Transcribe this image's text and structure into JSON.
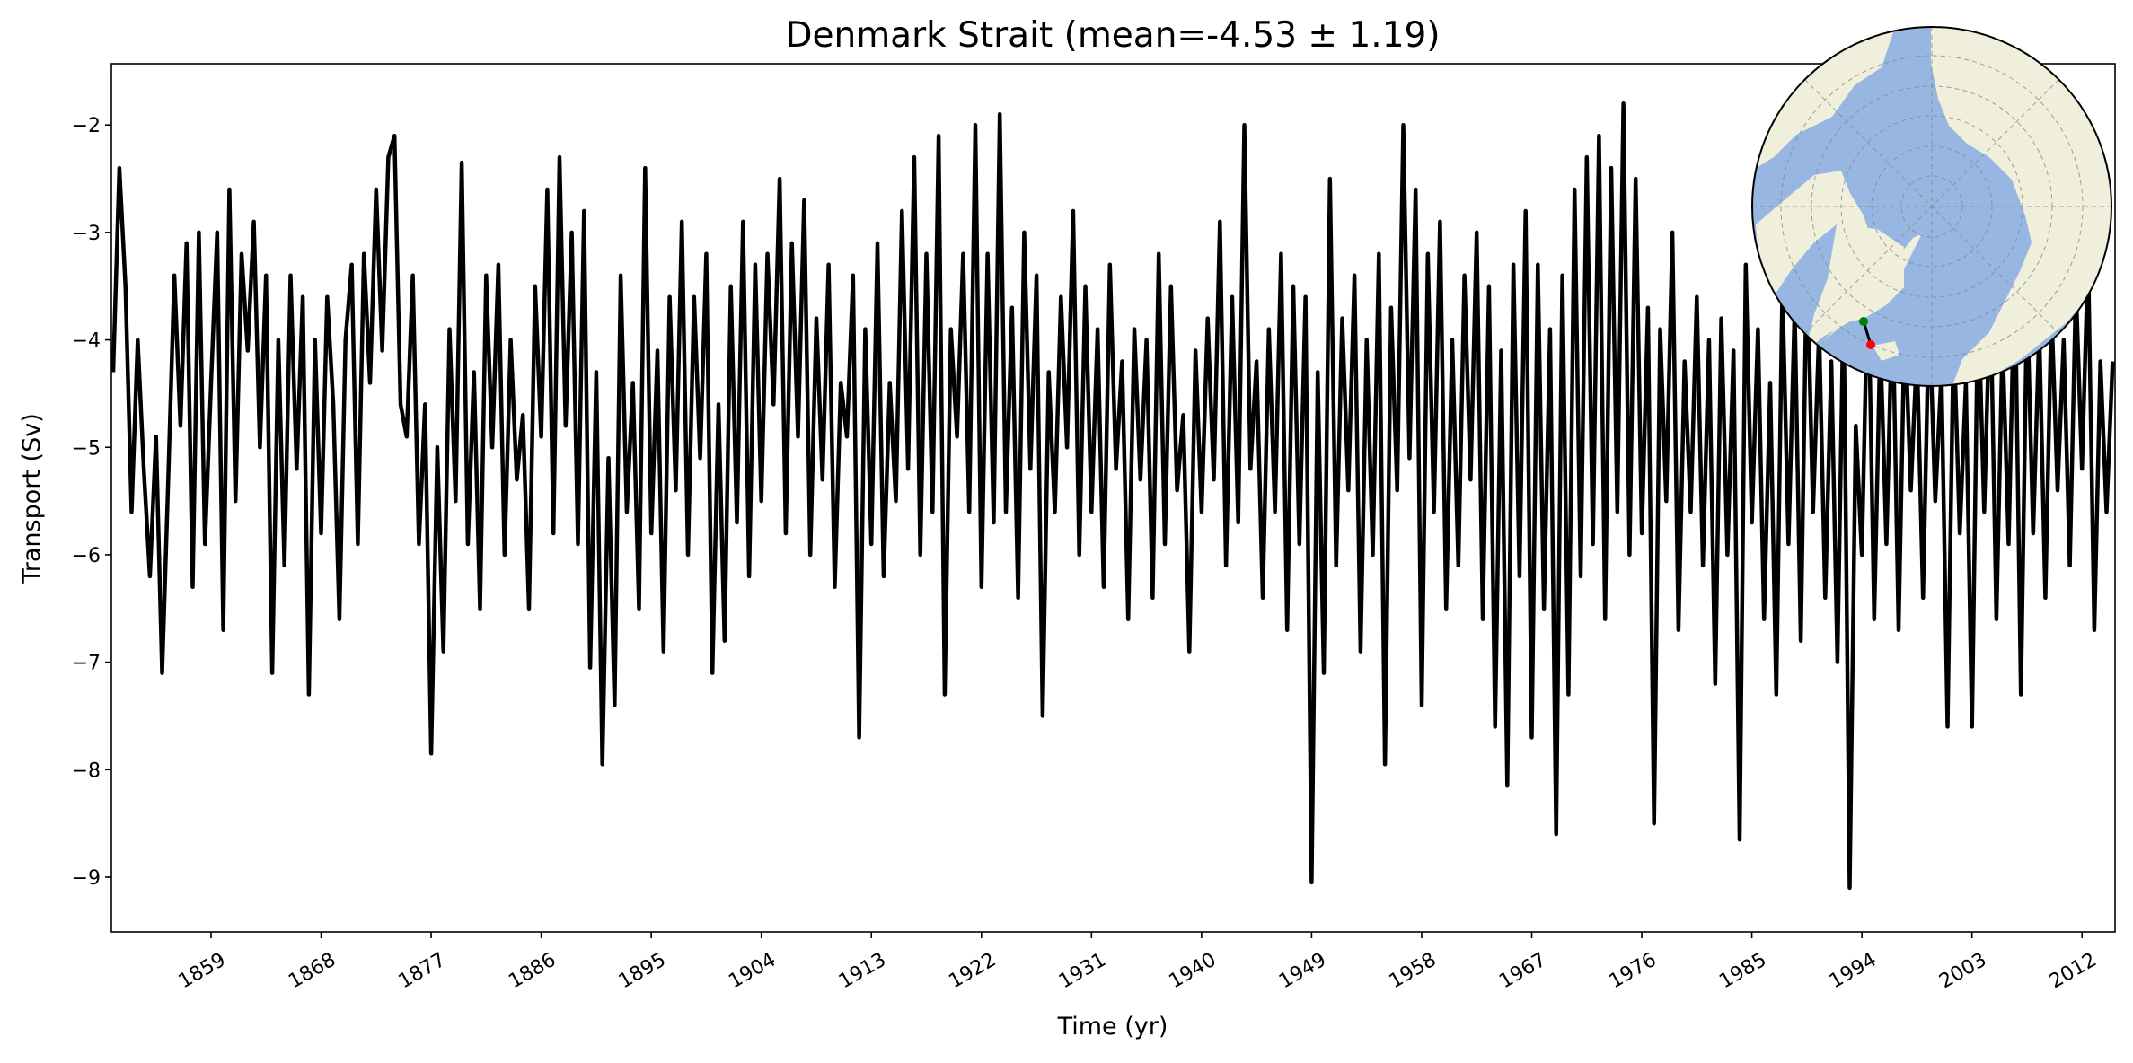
{
  "chart_data": {
    "type": "line",
    "title": "Denmark Strait (mean=-4.53 ± 1.19)",
    "xlabel": "Time (yr)",
    "ylabel": "Transport (Sv)",
    "xlim": [
      1850.85,
      2014.7
    ],
    "ylim": [
      -9.51,
      -1.43
    ],
    "xticks": [
      "1859",
      "1868",
      "1877",
      "1886",
      "1895",
      "1904",
      "1913",
      "1922",
      "1931",
      "1940",
      "1949",
      "1958",
      "1967",
      "1976",
      "1985",
      "1994",
      "2003",
      "2012"
    ],
    "yticks": [
      "−2",
      "−3",
      "−4",
      "−5",
      "−6",
      "−7",
      "−8",
      "−9"
    ],
    "grid": false,
    "line_color": "#000000",
    "series": [
      {
        "time_start": 1851,
        "time_step_yr": 0.5,
        "values": [
          -4.3,
          -2.4,
          -3.5,
          -5.6,
          -4.0,
          -5.2,
          -6.2,
          -4.9,
          -7.1,
          -5.3,
          -3.4,
          -4.8,
          -3.1,
          -6.3,
          -3.0,
          -5.9,
          -4.4,
          -3.0,
          -6.7,
          -2.6,
          -5.5,
          -3.2,
          -4.1,
          -2.9,
          -5.0,
          -3.4,
          -7.1,
          -4.0,
          -6.1,
          -3.4,
          -5.2,
          -3.6,
          -7.3,
          -4.0,
          -5.8,
          -3.6,
          -4.6,
          -6.6,
          -4.0,
          -3.3,
          -5.9,
          -3.2,
          -4.4,
          -2.6,
          -4.1,
          -2.3,
          -2.1,
          -4.6,
          -4.9,
          -3.4,
          -5.9,
          -4.6,
          -7.85,
          -5.0,
          -6.9,
          -3.9,
          -5.5,
          -2.35,
          -5.9,
          -4.3,
          -6.5,
          -3.4,
          -5.0,
          -3.3,
          -6.0,
          -4.0,
          -5.3,
          -4.7,
          -6.5,
          -3.5,
          -4.9,
          -2.6,
          -5.8,
          -2.3,
          -4.8,
          -3.0,
          -5.9,
          -2.8,
          -7.05,
          -4.3,
          -7.95,
          -5.1,
          -7.4,
          -3.4,
          -5.6,
          -4.4,
          -6.5,
          -2.4,
          -5.8,
          -4.1,
          -6.9,
          -3.6,
          -5.4,
          -2.9,
          -6.0,
          -3.6,
          -5.1,
          -3.2,
          -7.1,
          -4.6,
          -6.8,
          -3.5,
          -5.7,
          -2.9,
          -6.2,
          -3.3,
          -5.5,
          -3.2,
          -4.6,
          -2.5,
          -5.8,
          -3.1,
          -4.9,
          -2.7,
          -6.0,
          -3.8,
          -5.3,
          -3.3,
          -6.3,
          -4.4,
          -4.9,
          -3.4,
          -7.7,
          -3.9,
          -5.9,
          -3.1,
          -6.2,
          -4.4,
          -5.5,
          -2.8,
          -5.2,
          -2.3,
          -6.0,
          -3.2,
          -5.6,
          -2.1,
          -7.3,
          -3.9,
          -4.9,
          -3.2,
          -5.6,
          -2.0,
          -6.3,
          -3.2,
          -5.7,
          -1.9,
          -5.6,
          -3.7,
          -6.4,
          -3.0,
          -5.2,
          -3.4,
          -7.5,
          -4.3,
          -5.6,
          -3.6,
          -5.0,
          -2.8,
          -6.0,
          -3.5,
          -5.6,
          -3.9,
          -6.3,
          -3.3,
          -5.2,
          -4.2,
          -6.6,
          -3.9,
          -5.3,
          -4.0,
          -6.4,
          -3.2,
          -5.9,
          -3.5,
          -5.4,
          -4.7,
          -6.9,
          -4.1,
          -5.6,
          -3.8,
          -5.3,
          -2.9,
          -6.1,
          -3.6,
          -5.7,
          -2.0,
          -5.2,
          -4.2,
          -6.4,
          -3.9,
          -5.6,
          -3.2,
          -6.7,
          -3.5,
          -5.9,
          -3.6,
          -9.05,
          -4.3,
          -7.1,
          -2.5,
          -6.1,
          -3.8,
          -5.4,
          -3.4,
          -6.9,
          -4.0,
          -6.0,
          -3.2,
          -7.95,
          -3.7,
          -5.4,
          -2.0,
          -5.1,
          -2.6,
          -7.4,
          -3.2,
          -5.6,
          -2.9,
          -6.5,
          -4.0,
          -6.1,
          -3.4,
          -5.3,
          -3.0,
          -6.6,
          -3.5,
          -7.6,
          -4.1,
          -8.15,
          -3.3,
          -6.2,
          -2.8,
          -7.7,
          -3.3,
          -6.5,
          -3.9,
          -8.6,
          -3.4,
          -7.3,
          -2.6,
          -6.2,
          -2.3,
          -5.9,
          -2.1,
          -6.6,
          -2.4,
          -5.6,
          -1.8,
          -6.0,
          -2.5,
          -5.8,
          -3.7,
          -8.5,
          -3.9,
          -5.5,
          -3.0,
          -6.7,
          -4.2,
          -5.6,
          -3.6,
          -6.1,
          -4.0,
          -7.2,
          -3.8,
          -6.0,
          -4.1,
          -8.65,
          -3.3,
          -5.7,
          -3.9,
          -6.6,
          -4.4,
          -7.3,
          -3.5,
          -5.9,
          -3.7,
          -6.8,
          -3.2,
          -5.6,
          -3.9,
          -6.4,
          -4.2,
          -7.0,
          -3.6,
          -9.1,
          -4.8,
          -6.0,
          -3.3,
          -6.6,
          -4.0,
          -5.9,
          -3.6,
          -6.7,
          -3.8,
          -5.4,
          -4.1,
          -6.4,
          -3.7,
          -5.5,
          -4.3,
          -7.6,
          -3.9,
          -5.8,
          -4.4,
          -7.6,
          -3.6,
          -5.6,
          -3.5,
          -6.6,
          -4.0,
          -5.9,
          -3.3,
          -7.3,
          -3.6,
          -5.8,
          -3.9,
          -6.4,
          -3.7,
          -5.4,
          -4.0,
          -6.1,
          -3.5,
          -5.2,
          -3.2,
          -6.7,
          -4.2,
          -5.6,
          -4.2
        ]
      }
    ],
    "inset_map": {
      "projection": "north-polar-stereographic",
      "ocean_color": "#97b6e1",
      "land_color": "#efefdb",
      "section_start_color": "#008000",
      "section_end_color": "#ff0000"
    }
  }
}
